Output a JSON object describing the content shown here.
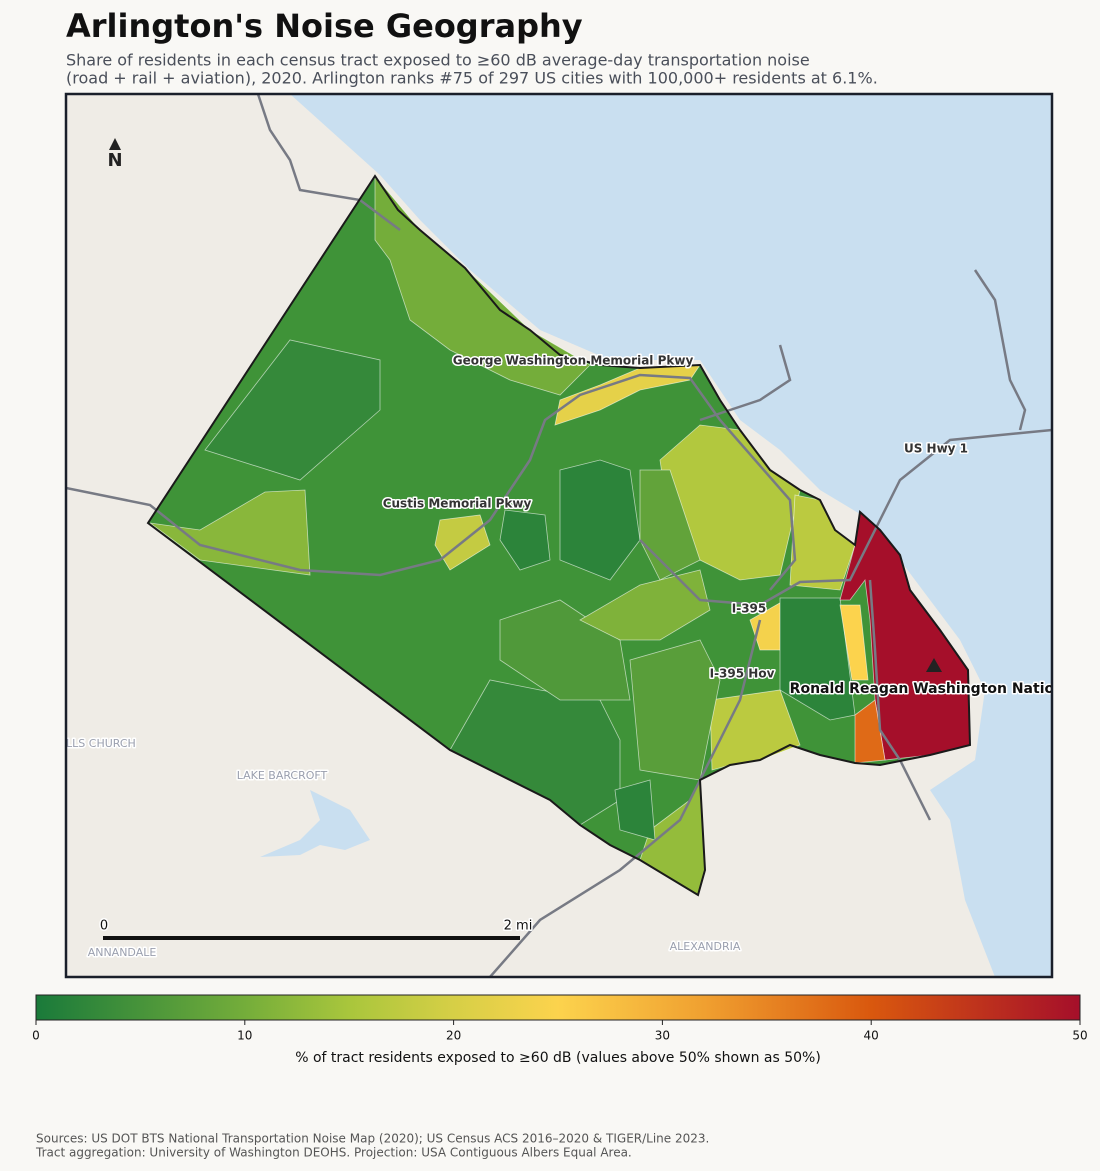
{
  "header": {
    "title": "Arlington's Noise Geography",
    "subtitle": [
      "Share of residents in each census tract exposed to ≥60 dB average-day transportation noise",
      "(road + rail + aviation), 2020. Arlington ranks #75 of 297 US cities with 100,000+ residents at 6.1%."
    ]
  },
  "map": {
    "north": "N",
    "places": [
      "WEST FALLS CHURCH",
      "LAKE BARCROFT",
      "ANNANDALE",
      "ALEXANDRIA"
    ],
    "roads": [
      "George Washington Memorial Pkwy",
      "Custis Memorial Pkwy",
      "US Hwy 1",
      "I-395",
      "I-395 Hov"
    ],
    "airport": "Ronald Reagan Washington National",
    "scale_bar": {
      "start": "0",
      "end": "2 mi"
    },
    "tracts": [
      10,
      3,
      12,
      18,
      2,
      22,
      16,
      17,
      24,
      2,
      25,
      50,
      38,
      17,
      13,
      3,
      6,
      11,
      2,
      8,
      2,
      7
    ]
  },
  "colorbar": {
    "lim": [
      0,
      50
    ],
    "ticks": [
      0,
      10,
      20,
      30,
      40,
      50
    ],
    "label": "% of tract residents exposed to ≥60 dB (values above 50% shown as 50%)",
    "colorscale": [
      {
        "value": 0,
        "color": "#1a7a3a"
      },
      {
        "value": 10,
        "color": "#74ad3a"
      },
      {
        "value": 15,
        "color": "#a9c63c"
      },
      {
        "value": 20,
        "color": "#d6cf46"
      },
      {
        "value": 25,
        "color": "#fcd34d"
      },
      {
        "value": 32,
        "color": "#f0a030"
      },
      {
        "value": 40,
        "color": "#d9580e"
      },
      {
        "value": 50,
        "color": "#a50f2a"
      }
    ]
  },
  "footer": [
    "Sources: US DOT BTS National Transportation Noise Map (2020); US Census ACS 2016–2020 & TIGER/Line 2023.",
    "Tract aggregation: University of Washington DEOHS. Projection: USA Contiguous Albers Equal Area."
  ]
}
